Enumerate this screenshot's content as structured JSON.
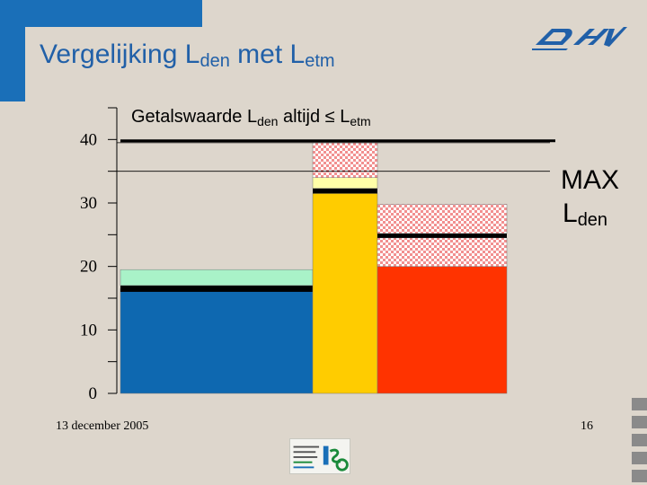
{
  "slide": {
    "title_main": "Vergelijking L",
    "title_sub1": "den",
    "title_mid": " met L",
    "title_sub2": "etm",
    "date": "13 december 2005",
    "page_number": "16",
    "logo_icon": "dhv-logo-icon",
    "badge_icon": "msg-badge-icon",
    "brand_color": "#1a6fb8",
    "title_color": "#2160a8"
  },
  "chart_data": {
    "type": "bar",
    "title_parts": [
      "Getalswaarde L",
      "den",
      " altijd ",
      "≤",
      " L",
      "etm"
    ],
    "ylim": [
      0,
      45
    ],
    "yticks": [
      0,
      10,
      20,
      30,
      40
    ],
    "grid": false,
    "legend": "none",
    "bars": [
      {
        "base": 16.5,
        "segments": [
          {
            "from": 16,
            "to": 17,
            "color": "#000000"
          },
          {
            "from": 17,
            "to": 19.5,
            "color": "#a9f2c8"
          }
        ],
        "base_color": "#0e68b0"
      },
      {
        "base": 31.5,
        "segments": [
          {
            "from": 31.5,
            "to": 32.3,
            "color": "#000000"
          },
          {
            "from": 32.3,
            "to": 34,
            "color": "#ffffa8"
          },
          {
            "from": 34,
            "to": 39.5,
            "color": "checker"
          }
        ],
        "base_color": "#ffcc00"
      },
      {
        "base": 20,
        "segments": [
          {
            "from": 20,
            "to": 24.5,
            "color": "checker"
          },
          {
            "from": 24.5,
            "to": 25.2,
            "color": "#000000"
          },
          {
            "from": 25.2,
            "to": 29.8,
            "color": "checker"
          }
        ],
        "base_color": "#ff3300"
      }
    ],
    "max_line": {
      "value": 39.8,
      "label_line1": "MAX",
      "label_line2_main": "L",
      "label_line2_sub": "den"
    },
    "thin_lines": [
      35,
      39.5
    ]
  }
}
